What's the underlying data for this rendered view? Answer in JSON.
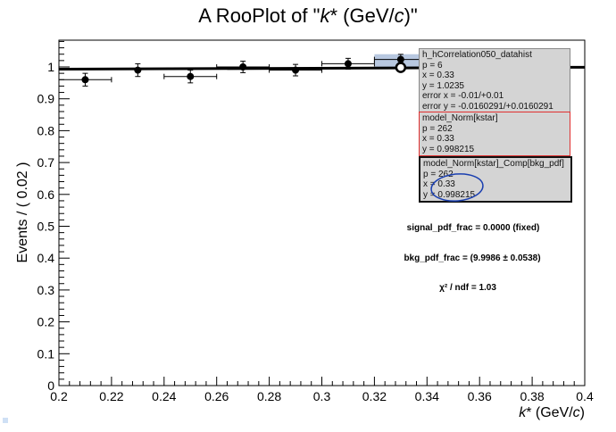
{
  "chart_data": {
    "type": "scatter",
    "title_parts": [
      "A RooPlot of \"",
      "k",
      "* (GeV/",
      "c",
      ")\""
    ],
    "xlabel_parts": [
      "k",
      "* (GeV/",
      "c",
      ")"
    ],
    "ylabel": "Events / ( 0.02 )",
    "xlim": [
      0.2,
      0.4
    ],
    "ylim": [
      0,
      1.08
    ],
    "xticks": [
      0.2,
      0.22,
      0.24,
      0.26,
      0.28,
      0.3,
      0.32,
      0.34,
      0.36,
      0.38,
      0.4
    ],
    "xtick_labels": [
      "0.2",
      "0.22",
      "0.24",
      "0.26",
      "0.28",
      "0.3",
      "0.32",
      "0.34",
      "0.36",
      "0.38",
      "0.4"
    ],
    "yticks": [
      0,
      0.1,
      0.2,
      0.3,
      0.4,
      0.5,
      0.6,
      0.7,
      0.8,
      0.9,
      1
    ],
    "ytick_labels": [
      "0",
      "0.1",
      "0.2",
      "0.3",
      "0.4",
      "0.5",
      "0.6",
      "0.7",
      "0.8",
      "0.9",
      "1"
    ],
    "data_points": [
      {
        "x": 0.21,
        "y": 0.96,
        "ex": 0.01,
        "ey": 0.02
      },
      {
        "x": 0.23,
        "y": 0.99,
        "ex": 0.0,
        "ey": 0.02
      },
      {
        "x": 0.25,
        "y": 0.97,
        "ex": 0.01,
        "ey": 0.02
      },
      {
        "x": 0.27,
        "y": 1.0,
        "ex": 0.01,
        "ey": 0.018
      },
      {
        "x": 0.29,
        "y": 0.99,
        "ex": 0.01,
        "ey": 0.018
      },
      {
        "x": 0.31,
        "y": 1.01,
        "ex": 0.01,
        "ey": 0.017
      },
      {
        "x": 0.33,
        "y": 1.0235,
        "ex": 0.01,
        "ey": 0.016
      }
    ],
    "model_line": {
      "y_start": 0.993,
      "y_end": 0.999
    },
    "highlight_point": {
      "x": 0.33,
      "y": 0.998215
    },
    "annotations": [
      "signal_pdf_frac = 0.0000 (fixed)",
      "bkg_pdf_frac = (9.9986 ± 0.0538)",
      "χ² / ndf = 1.03"
    ]
  },
  "tooltips": [
    {
      "lines": [
        "h_hCorrelation050_datahist",
        "p = 6",
        "x = 0.33",
        "y = 1.0235",
        "error x = -0.01/+0.01",
        "error y = -0.0160291/+0.0160291"
      ],
      "border": "#888888"
    },
    {
      "lines": [
        "model_Norm[kstar]",
        "p = 262",
        "x = 0.33",
        "y = 0.998215"
      ],
      "border": "#e03030"
    },
    {
      "lines": [
        "model_Norm[kstar]_Comp[bkg_pdf]",
        "p = 262",
        "x = 0.33",
        "y = 0.998215"
      ],
      "border": "#111111"
    }
  ],
  "colors": {
    "annotation_circle": "#1a3fb0",
    "highlight": "#b8c8e0"
  }
}
